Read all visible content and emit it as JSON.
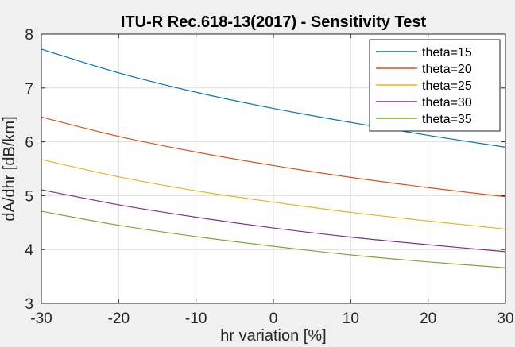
{
  "chart_data": {
    "type": "line",
    "title": "ITU-R Rec.618-13(2017) - Sensitivity Test",
    "xlabel": "hr variation [%]",
    "ylabel": "dA/dhr [dB/km]",
    "xlim": [
      -30,
      30
    ],
    "ylim": [
      3,
      8
    ],
    "xticks": [
      -30,
      -20,
      -10,
      0,
      10,
      20,
      30
    ],
    "yticks": [
      3,
      4,
      5,
      6,
      7,
      8
    ],
    "grid": true,
    "legend_position": "top-right",
    "x": [
      -30,
      -20,
      -10,
      0,
      10,
      20,
      30
    ],
    "series": [
      {
        "name": "theta=15",
        "color": "#0072BD",
        "values": [
          7.72,
          7.28,
          6.92,
          6.62,
          6.36,
          6.12,
          5.9
        ]
      },
      {
        "name": "theta=20",
        "color": "#D95319",
        "values": [
          6.46,
          6.1,
          5.81,
          5.56,
          5.34,
          5.15,
          4.98
        ]
      },
      {
        "name": "theta=25",
        "color": "#EDB120",
        "values": [
          5.67,
          5.35,
          5.09,
          4.88,
          4.69,
          4.53,
          4.38
        ]
      },
      {
        "name": "theta=30",
        "color": "#7E2F8E",
        "values": [
          5.11,
          4.83,
          4.6,
          4.4,
          4.23,
          4.09,
          3.96
        ]
      },
      {
        "name": "theta=35",
        "color": "#77AC30",
        "values": [
          4.71,
          4.45,
          4.24,
          4.06,
          3.9,
          3.77,
          3.66
        ]
      }
    ]
  }
}
